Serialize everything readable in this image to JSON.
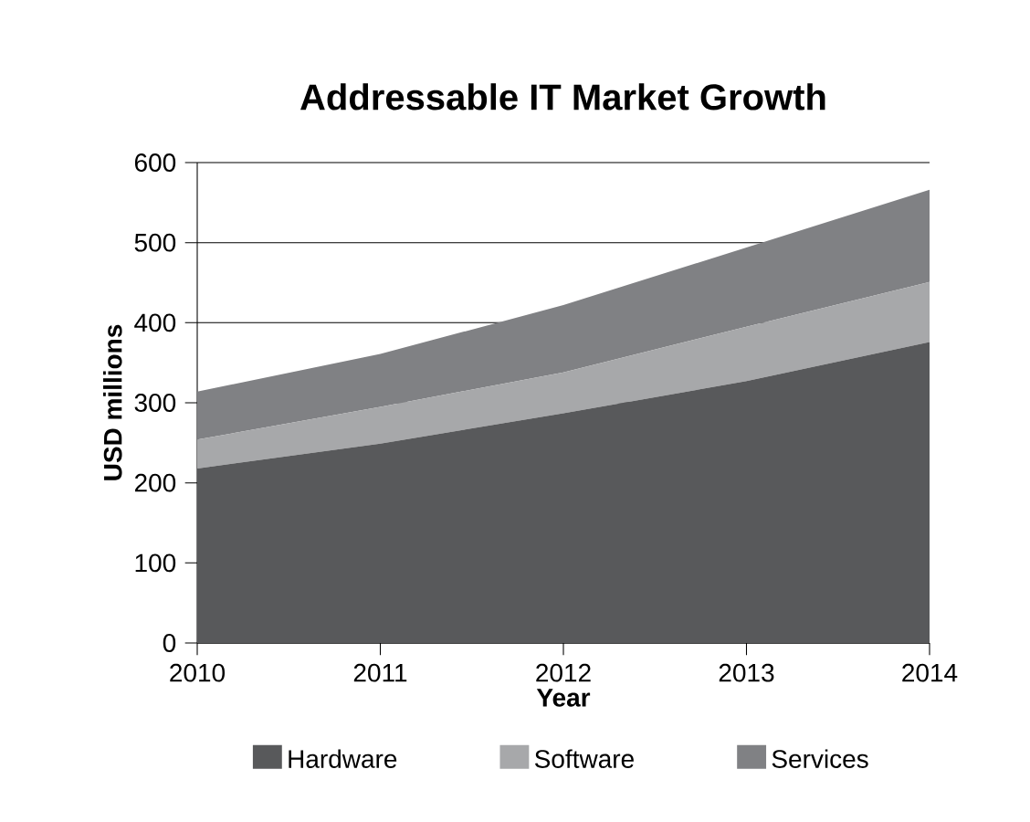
{
  "chart_data": {
    "type": "area",
    "title": "Addressable IT Market Growth",
    "xlabel": "Year",
    "ylabel": "USD millions",
    "categories": [
      "2010",
      "2011",
      "2012",
      "2013",
      "2014"
    ],
    "stacked": true,
    "series": [
      {
        "name": "Hardware",
        "color": "#58595b",
        "values": [
          218,
          249,
          287,
          327,
          376
        ]
      },
      {
        "name": "Software",
        "color": "#a7a8aa",
        "values": [
          36,
          46,
          51,
          68,
          75
        ]
      },
      {
        "name": "Services",
        "color": "#808184",
        "values": [
          60,
          66,
          84,
          99,
          115
        ]
      }
    ],
    "ylim": [
      0,
      600
    ],
    "yticks": [
      0,
      100,
      200,
      300,
      400,
      500,
      600
    ],
    "grid": "y",
    "legend": "bottom"
  }
}
